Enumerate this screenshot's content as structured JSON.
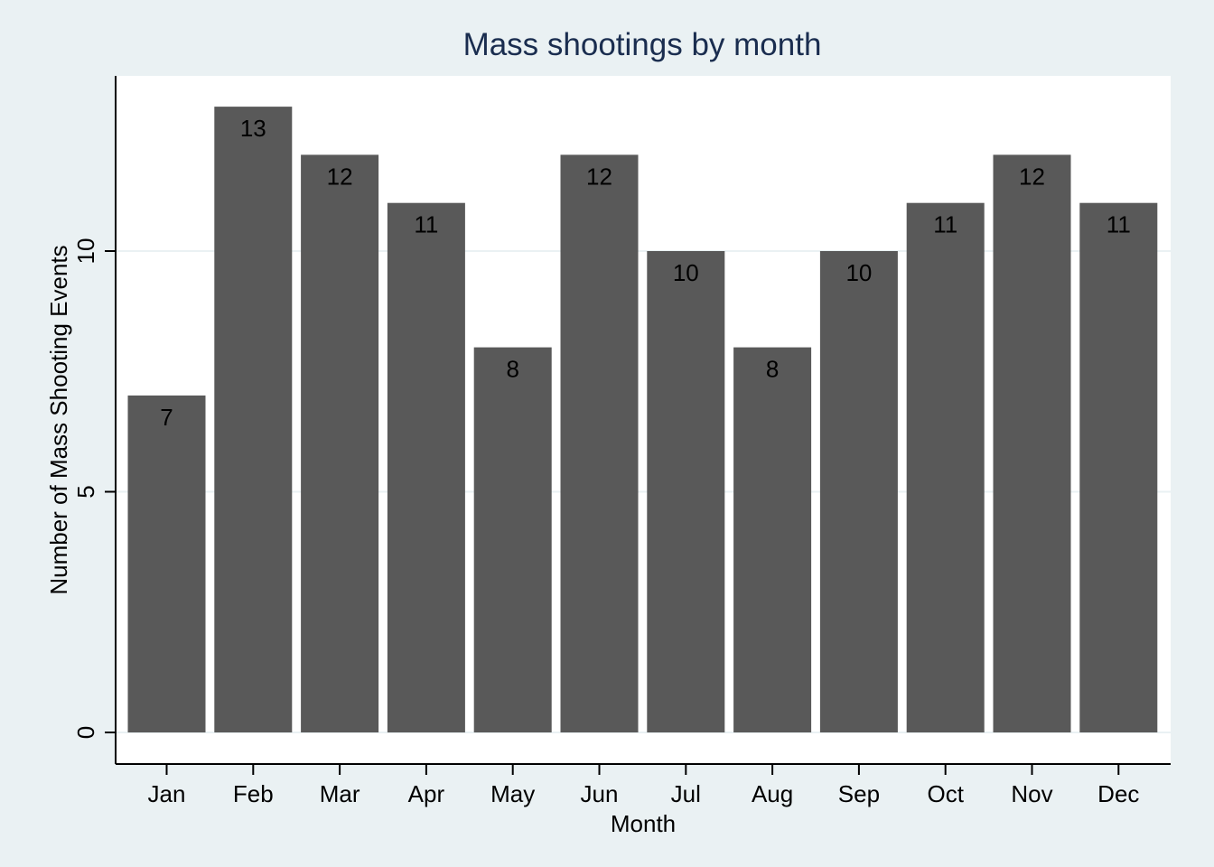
{
  "chart_data": {
    "type": "bar",
    "title": "Mass shootings by month",
    "xlabel": "Month",
    "ylabel": "Number of Mass Shooting Events",
    "categories": [
      "Jan",
      "Feb",
      "Mar",
      "Apr",
      "May",
      "Jun",
      "Jul",
      "Aug",
      "Sep",
      "Oct",
      "Nov",
      "Dec"
    ],
    "values": [
      7,
      13,
      12,
      11,
      8,
      12,
      10,
      8,
      10,
      11,
      12,
      11
    ],
    "ylim": [
      0,
      13
    ],
    "yticks": [
      0,
      5,
      10
    ],
    "grid": true,
    "data_labels": true,
    "legend": "none"
  },
  "colors": {
    "background": "#eaf1f3",
    "plot_area": "#ffffff",
    "bar": "#595959",
    "gridline": "#eaf1f3",
    "axis": "#000000",
    "title": "#1a2d4f"
  }
}
